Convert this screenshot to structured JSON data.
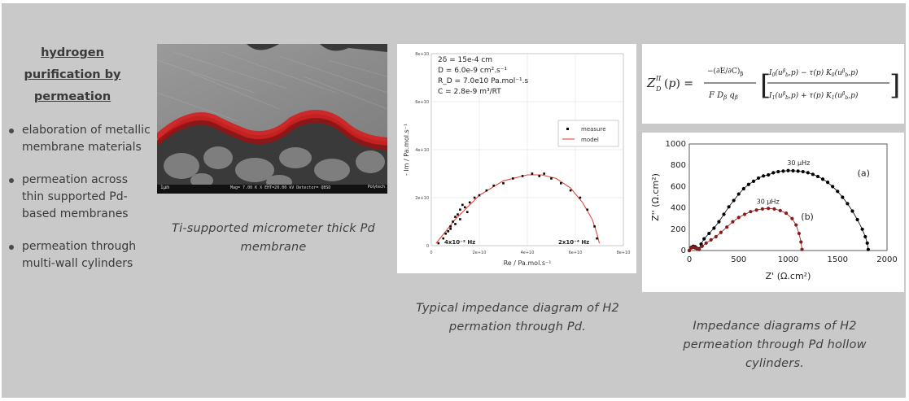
{
  "sidebar": {
    "title": "hydrogen purification by permeation",
    "items": [
      "elaboration of metallic membrane materials",
      "permeation across thin supported Pd-based membranes",
      "permeation through multi-wall cylinders"
    ]
  },
  "figures": {
    "sem": {
      "caption": "Ti-supported micrometer thick Pd membrane",
      "scale_bar": "1µm",
      "info_bar": "Mag= 7.00 K X   EHT=20.00 kV   Detector= QBSD",
      "brand": "Polytech"
    },
    "nyquist1": {
      "caption": "Typical impedance diagram of H2 permation through Pd.",
      "params": [
        "2δ = 15e-4 cm",
        "D = 6.0e-9 cm².s⁻¹",
        "R_D = 7.0e10 Pa.mol⁻¹.s",
        "C = 2.8e-9 m³/RT"
      ],
      "legend": [
        "measure",
        "model"
      ],
      "freq_labels": [
        "4x10⁻² Hz",
        "2x10⁻⁴ Hz"
      ],
      "colors": {
        "measure": "#000000",
        "model": "#e04a3a"
      }
    },
    "equation": {
      "lhs": "Z_D^II(p) = ",
      "alt": "−(∂E/∂C)_β / (F D_β q_β) · [I0(u_b^β,p) − τ(p) K0(u_b^β,p)] / [I1(u_b^β,p) + τ(p) K1(u_b^β,p)]"
    },
    "nyquist2": {
      "caption": "Impedance diagrams of H2 permeation through Pd hollow cylinders.",
      "series_labels": [
        "(a)",
        "(b)"
      ],
      "freq_labels": [
        "30 µHz",
        "30 µHz"
      ],
      "colors": {
        "a": "#000000",
        "b": "#8b1a1a"
      }
    }
  },
  "chart_data": [
    {
      "type": "scatter",
      "xlabel": "Re / Pa.mol.s⁻¹",
      "ylabel": "- Im / Pa.mol.s⁻¹",
      "xlim": [
        0,
        80000000000.0
      ],
      "ylim": [
        0,
        80000000000.0
      ],
      "x_ticks": [
        "0",
        "2e+10",
        "4e+10",
        "6e+10",
        "8e+10"
      ],
      "y_ticks": [
        "0",
        "2e+10",
        "4e+10",
        "6e+10",
        "8e+10"
      ],
      "series": [
        {
          "name": "measure",
          "kind": "points",
          "x": [
            3000000000.0,
            5000000000.0,
            6000000000.0,
            7000000000.0,
            8000000000.0,
            9000000000.0,
            10000000000.0,
            11000000000.0,
            12000000000.0,
            13000000000.0,
            14000000000.0,
            16000000000.0,
            18000000000.0,
            20000000000.0,
            23000000000.0,
            26000000000.0,
            30000000000.0,
            34000000000.0,
            38000000000.0,
            42000000000.0,
            45000000000.0,
            47000000000.0,
            50000000000.0,
            54000000000.0,
            58000000000.0,
            62000000000.0,
            65000000000.0,
            68000000000.0,
            69000000000.0,
            10000000000.0,
            12000000000.0,
            15000000000.0,
            8000000000.0
          ],
          "y": [
            1000000000.0,
            3000000000.0,
            5000000000.0,
            6000000000.0,
            8000000000.0,
            10000000000.0,
            12000000000.0,
            13000000000.0,
            15000000000.0,
            17000000000.0,
            16000000000.0,
            18000000000.0,
            20000000000.0,
            21000000000.0,
            23000000000.0,
            25000000000.0,
            26000000000.0,
            28000000000.0,
            29000000000.0,
            30000000000.0,
            29000000000.0,
            30000000000.0,
            28000000000.0,
            26000000000.0,
            23000000000.0,
            20000000000.0,
            15000000000.0,
            8000000000.0,
            3000000000.0,
            9000000000.0,
            11000000000.0,
            14000000000.0,
            7000000000.0
          ]
        },
        {
          "name": "model",
          "kind": "line",
          "x": [
            2000000000.0,
            10000000000.0,
            20000000000.0,
            30000000000.0,
            40000000000.0,
            46000000000.0,
            52000000000.0,
            58000000000.0,
            63000000000.0,
            67000000000.0,
            69000000000.0,
            70000000000.0
          ],
          "y": [
            1000000000.0,
            11000000000.0,
            21000000000.0,
            27000000000.0,
            29500000000.0,
            29500000000.0,
            28000000000.0,
            24000000000.0,
            18000000000.0,
            11000000000.0,
            5000000000.0,
            1000000000.0
          ]
        }
      ]
    },
    {
      "type": "scatter",
      "xlabel": "Z' (Ω.cm²)",
      "ylabel": "Z'' (Ω.cm²)",
      "xlim": [
        0,
        2000
      ],
      "ylim": [
        0,
        1000
      ],
      "x_ticks": [
        "0",
        "500",
        "1000",
        "1500",
        "2000"
      ],
      "y_ticks": [
        "0",
        "200",
        "400",
        "600",
        "800",
        "1000"
      ],
      "series": [
        {
          "name": "(a)",
          "x": [
            0,
            20,
            40,
            60,
            80,
            100,
            120,
            150,
            200,
            250,
            300,
            350,
            400,
            450,
            500,
            550,
            600,
            650,
            700,
            750,
            800,
            850,
            900,
            950,
            1000,
            1050,
            1100,
            1150,
            1200,
            1250,
            1300,
            1350,
            1400,
            1450,
            1500,
            1550,
            1600,
            1650,
            1700,
            1750,
            1780,
            1800,
            1810
          ],
          "y": [
            0,
            30,
            40,
            35,
            20,
            15,
            60,
            110,
            160,
            210,
            270,
            340,
            410,
            470,
            530,
            580,
            620,
            650,
            680,
            700,
            710,
            730,
            740,
            745,
            750,
            748,
            745,
            740,
            730,
            715,
            695,
            670,
            640,
            600,
            555,
            500,
            440,
            370,
            290,
            200,
            130,
            70,
            10
          ]
        },
        {
          "name": "(b)",
          "x": [
            0,
            20,
            40,
            60,
            80,
            100,
            130,
            170,
            220,
            270,
            320,
            380,
            440,
            500,
            560,
            620,
            680,
            740,
            800,
            860,
            920,
            980,
            1040,
            1080,
            1110,
            1130,
            1140
          ],
          "y": [
            0,
            25,
            30,
            25,
            15,
            10,
            40,
            70,
            100,
            130,
            170,
            220,
            270,
            310,
            340,
            365,
            380,
            390,
            395,
            390,
            375,
            350,
            300,
            240,
            160,
            80,
            10
          ]
        }
      ]
    }
  ]
}
